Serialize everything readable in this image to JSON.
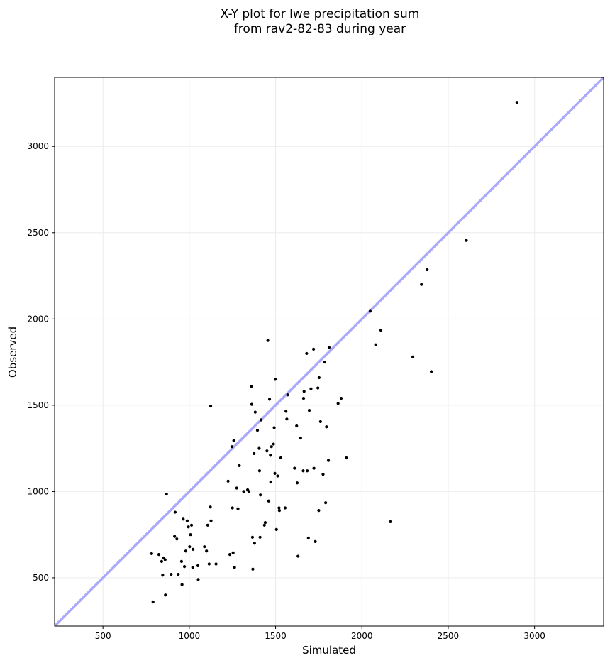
{
  "chart_data": {
    "type": "scatter",
    "title": "X-Y plot for lwe precipitation sum\nfrom rav2-82-83 during year",
    "xlabel": "Simulated",
    "ylabel": "Observed",
    "xlim": [
      220,
      3400
    ],
    "ylim": [
      220,
      3400
    ],
    "xticks": [
      500,
      1000,
      1500,
      2000,
      2500,
      3000
    ],
    "yticks": [
      500,
      1000,
      1500,
      2000,
      2500,
      3000
    ],
    "grid": true,
    "legend": "none",
    "point_color": "#000000",
    "reference_line": {
      "type": "1:1",
      "color": "#aaaaf8"
    },
    "points": [
      [
        782,
        640
      ],
      [
        790,
        360
      ],
      [
        824,
        635
      ],
      [
        840,
        595
      ],
      [
        846,
        515
      ],
      [
        852,
        615
      ],
      [
        860,
        605
      ],
      [
        862,
        400
      ],
      [
        868,
        985
      ],
      [
        895,
        520
      ],
      [
        915,
        740
      ],
      [
        918,
        880
      ],
      [
        928,
        725
      ],
      [
        936,
        520
      ],
      [
        955,
        595
      ],
      [
        958,
        460
      ],
      [
        965,
        840
      ],
      [
        972,
        565
      ],
      [
        980,
        655
      ],
      [
        988,
        830
      ],
      [
        995,
        795
      ],
      [
        1002,
        680
      ],
      [
        1007,
        750
      ],
      [
        1013,
        805
      ],
      [
        1020,
        560
      ],
      [
        1022,
        665
      ],
      [
        1050,
        570
      ],
      [
        1052,
        490
      ],
      [
        1088,
        680
      ],
      [
        1100,
        655
      ],
      [
        1107,
        805
      ],
      [
        1115,
        580
      ],
      [
        1122,
        910
      ],
      [
        1124,
        1495
      ],
      [
        1126,
        830
      ],
      [
        1155,
        580
      ],
      [
        1225,
        1060
      ],
      [
        1235,
        635
      ],
      [
        1247,
        1260
      ],
      [
        1250,
        905
      ],
      [
        1254,
        645
      ],
      [
        1258,
        1295
      ],
      [
        1262,
        560
      ],
      [
        1275,
        1020
      ],
      [
        1282,
        900
      ],
      [
        1290,
        1150
      ],
      [
        1315,
        1000
      ],
      [
        1338,
        1010
      ],
      [
        1345,
        1000
      ],
      [
        1360,
        1610
      ],
      [
        1362,
        1505
      ],
      [
        1366,
        735
      ],
      [
        1368,
        550
      ],
      [
        1375,
        1220
      ],
      [
        1378,
        700
      ],
      [
        1382,
        1460
      ],
      [
        1395,
        1355
      ],
      [
        1405,
        1250
      ],
      [
        1407,
        1120
      ],
      [
        1410,
        735
      ],
      [
        1412,
        980
      ],
      [
        1416,
        1415
      ],
      [
        1435,
        805
      ],
      [
        1440,
        820
      ],
      [
        1450,
        1235
      ],
      [
        1455,
        1875
      ],
      [
        1460,
        945
      ],
      [
        1465,
        1535
      ],
      [
        1470,
        1210
      ],
      [
        1472,
        1055
      ],
      [
        1476,
        1260
      ],
      [
        1488,
        1275
      ],
      [
        1492,
        1370
      ],
      [
        1496,
        1105
      ],
      [
        1498,
        1650
      ],
      [
        1505,
        780
      ],
      [
        1512,
        1090
      ],
      [
        1520,
        905
      ],
      [
        1522,
        890
      ],
      [
        1530,
        1195
      ],
      [
        1555,
        905
      ],
      [
        1560,
        1465
      ],
      [
        1565,
        1420
      ],
      [
        1570,
        1560
      ],
      [
        1610,
        1135
      ],
      [
        1622,
        1380
      ],
      [
        1625,
        1050
      ],
      [
        1630,
        625
      ],
      [
        1645,
        1310
      ],
      [
        1660,
        1120
      ],
      [
        1662,
        1540
      ],
      [
        1665,
        1580
      ],
      [
        1680,
        1800
      ],
      [
        1683,
        1120
      ],
      [
        1690,
        730
      ],
      [
        1695,
        1470
      ],
      [
        1705,
        1595
      ],
      [
        1720,
        1825
      ],
      [
        1722,
        1135
      ],
      [
        1730,
        710
      ],
      [
        1745,
        1600
      ],
      [
        1750,
        890
      ],
      [
        1752,
        1660
      ],
      [
        1760,
        1405
      ],
      [
        1775,
        1100
      ],
      [
        1785,
        1750
      ],
      [
        1790,
        935
      ],
      [
        1795,
        1375
      ],
      [
        1806,
        1180
      ],
      [
        1810,
        1835
      ],
      [
        1862,
        1510
      ],
      [
        1880,
        1540
      ],
      [
        1910,
        1195
      ],
      [
        2048,
        2045
      ],
      [
        2080,
        1850
      ],
      [
        2110,
        1935
      ],
      [
        2165,
        825
      ],
      [
        2295,
        1780
      ],
      [
        2345,
        2200
      ],
      [
        2378,
        2285
      ],
      [
        2402,
        1695
      ],
      [
        2605,
        2455
      ],
      [
        2898,
        3255
      ]
    ]
  }
}
